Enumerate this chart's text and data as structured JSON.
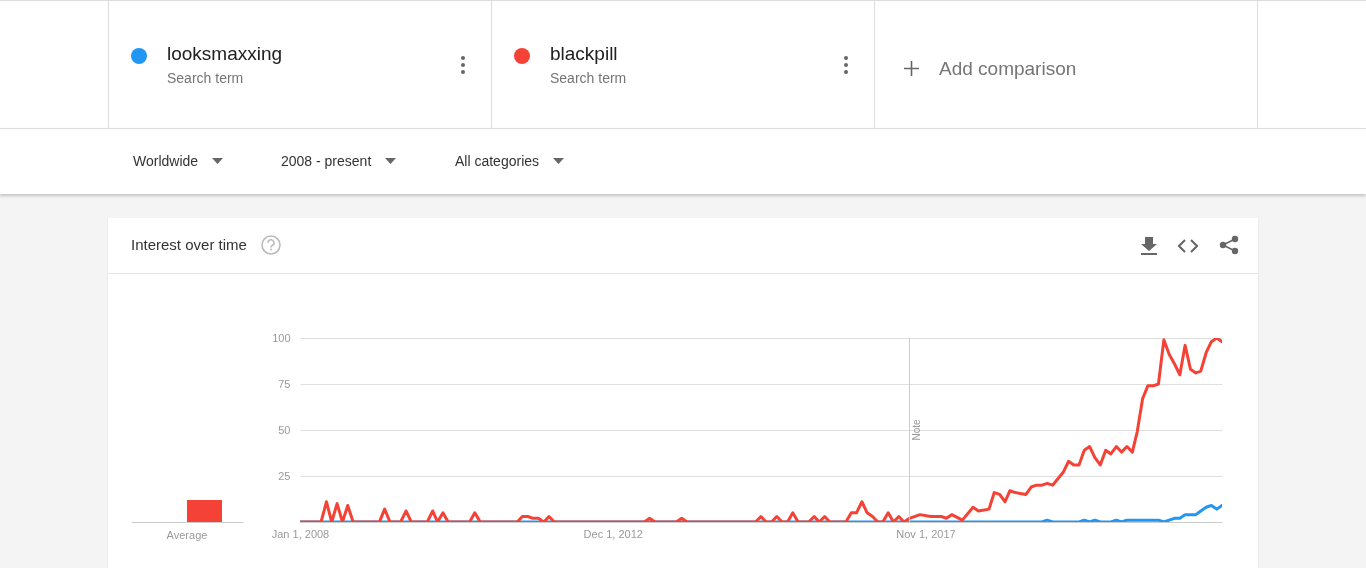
{
  "chart_data": [
    {
      "type": "bar",
      "title": "Interest over time",
      "categories": [
        "Average"
      ],
      "series": [
        {
          "color": "#2196f3",
          "values": [
            0
          ]
        },
        {
          "color": "#f44336",
          "values": [
            12
          ]
        }
      ],
      "ylim": [
        0,
        100
      ],
      "tick_labels": "x"
    },
    {
      "type": "line",
      "legend": "top",
      "grid": "y",
      "marker": "none",
      "line_style": "solid",
      "annotations": [
        "Search term",
        "Search term",
        "Add comparison",
        "Worldwide",
        "2008 - present",
        "All categories"
      ],
      "xlim": [
        "2008-01",
        "2022-07"
      ],
      "xticks": [
        {
          "value": "2008-01-01",
          "label": "Jan 1, 2008"
        },
        {
          "value": "2012-12-01",
          "label": "Dec 1, 2012"
        },
        {
          "value": "2017-11-01",
          "label": "Nov 1, 2017"
        }
      ],
      "ylim": [
        0,
        100
      ],
      "yticks": [
        {
          "value": 0,
          "label": null
        },
        25,
        50,
        75,
        100
      ],
      "ref_lines": [
        {
          "axis": "x",
          "value": "2017-08",
          "label": "Note",
          "color": "#cccccc"
        }
      ],
      "series": [
        {
          "name": "looksmaxxing",
          "color": "#2196f3",
          "x": [
            "2008-01",
            "2019-09",
            "2019-10",
            "2019-11",
            "2020-04",
            "2020-05",
            "2020-06",
            "2020-07",
            "2020-08",
            "2020-10",
            "2020-11",
            "2020-12",
            "2021-01",
            "2021-07",
            "2021-08",
            "2021-09",
            "2021-10",
            "2021-11",
            "2021-12",
            "2022-01",
            "2022-02",
            "2022-03",
            "2022-04",
            "2022-05",
            "2022-06",
            "2022-07"
          ],
          "values": [
            0,
            0,
            1,
            0,
            0,
            1,
            0,
            1,
            0,
            0,
            1,
            0,
            1,
            1,
            0,
            1,
            2,
            2,
            4,
            4,
            4,
            6,
            8,
            9,
            7,
            9
          ]
        },
        {
          "name": "blackpill",
          "color": "#f44336",
          "x": [
            "2008-01",
            "2008-05",
            "2008-06",
            "2008-07",
            "2008-08",
            "2008-09",
            "2008-10",
            "2008-11",
            "2009-04",
            "2009-05",
            "2009-06",
            "2009-08",
            "2009-09",
            "2009-10",
            "2010-01",
            "2010-02",
            "2010-03",
            "2010-04",
            "2010-05",
            "2010-09",
            "2010-10",
            "2010-11",
            "2011-06",
            "2011-07",
            "2011-08",
            "2011-09",
            "2011-10",
            "2011-11",
            "2011-12",
            "2012-01",
            "2013-06",
            "2013-07",
            "2013-08",
            "2013-12",
            "2014-01",
            "2014-02",
            "2015-03",
            "2015-04",
            "2015-05",
            "2015-06",
            "2015-07",
            "2015-08",
            "2015-09",
            "2015-10",
            "2015-11",
            "2016-01",
            "2016-02",
            "2016-03",
            "2016-04",
            "2016-05",
            "2016-08",
            "2016-09",
            "2016-10",
            "2016-11",
            "2016-12",
            "2017-01",
            "2017-02",
            "2017-03",
            "2017-04",
            "2017-05",
            "2017-06",
            "2017-07",
            "2017-08",
            "2017-10",
            "2017-12",
            "2018-02",
            "2018-03",
            "2018-04",
            "2018-06",
            "2018-08",
            "2018-09",
            "2018-11",
            "2018-12",
            "2019-01",
            "2019-02",
            "2019-03",
            "2019-04",
            "2019-06",
            "2019-07",
            "2019-08",
            "2019-09",
            "2019-10",
            "2019-11",
            "2020-01",
            "2020-02",
            "2020-03",
            "2020-04",
            "2020-05",
            "2020-06",
            "2020-07",
            "2020-08",
            "2020-09",
            "2020-10",
            "2020-11",
            "2020-12",
            "2021-01",
            "2021-02",
            "2021-03",
            "2021-04",
            "2021-05",
            "2021-06",
            "2021-07",
            "2021-08",
            "2021-09",
            "2021-10",
            "2021-11",
            "2021-12",
            "2022-01",
            "2022-02",
            "2022-03",
            "2022-04",
            "2022-05",
            "2022-06",
            "2022-07"
          ],
          "values": [
            0,
            0,
            11,
            0,
            10,
            0,
            9,
            0,
            0,
            7,
            0,
            0,
            6,
            0,
            0,
            6,
            0,
            5,
            0,
            0,
            5,
            0,
            0,
            3,
            3,
            2,
            2,
            0,
            3,
            0,
            0,
            2,
            0,
            0,
            2,
            0,
            0,
            3,
            0,
            0,
            3,
            0,
            0,
            5,
            0,
            0,
            3,
            0,
            3,
            0,
            0,
            5,
            5,
            11,
            5,
            3,
            0,
            0,
            5,
            0,
            3,
            0,
            2,
            4,
            3,
            3,
            2,
            4,
            1,
            8,
            6,
            7,
            16,
            15,
            11,
            17,
            16,
            15,
            19,
            20,
            20,
            21,
            20,
            27,
            33,
            31,
            31,
            39,
            41,
            35,
            31,
            39,
            37,
            41,
            38,
            41,
            38,
            49,
            67,
            74,
            74,
            75,
            99,
            91,
            86,
            80,
            96,
            83,
            81,
            82,
            92,
            98,
            100,
            98
          ]
        }
      ]
    }
  ]
}
